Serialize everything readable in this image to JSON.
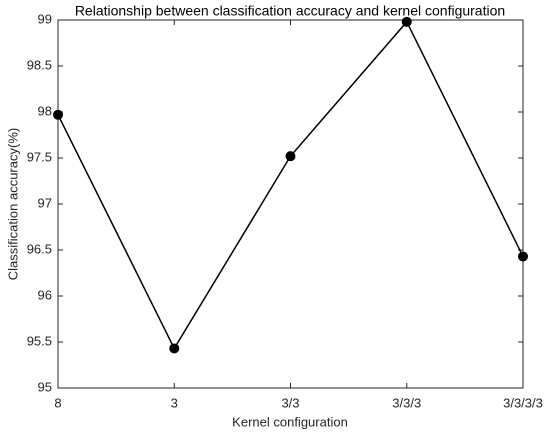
{
  "chart_data": {
    "type": "line",
    "title": "Relationship between classification accuracy and kernel configuration",
    "x_label": "Kernel configuration",
    "y_label": "Classification accuracy(%)",
    "categories": [
      "8",
      "3",
      "3/3",
      "3/3/3",
      "3/3/3/3"
    ],
    "values": [
      97.97,
      95.43,
      97.52,
      98.98,
      96.43
    ],
    "color": "#000000",
    "ylim": [
      95,
      99
    ],
    "yticks": [
      95,
      95.5,
      96,
      96.5,
      97,
      97.5,
      98,
      98.5,
      99
    ],
    "grid": false
  }
}
